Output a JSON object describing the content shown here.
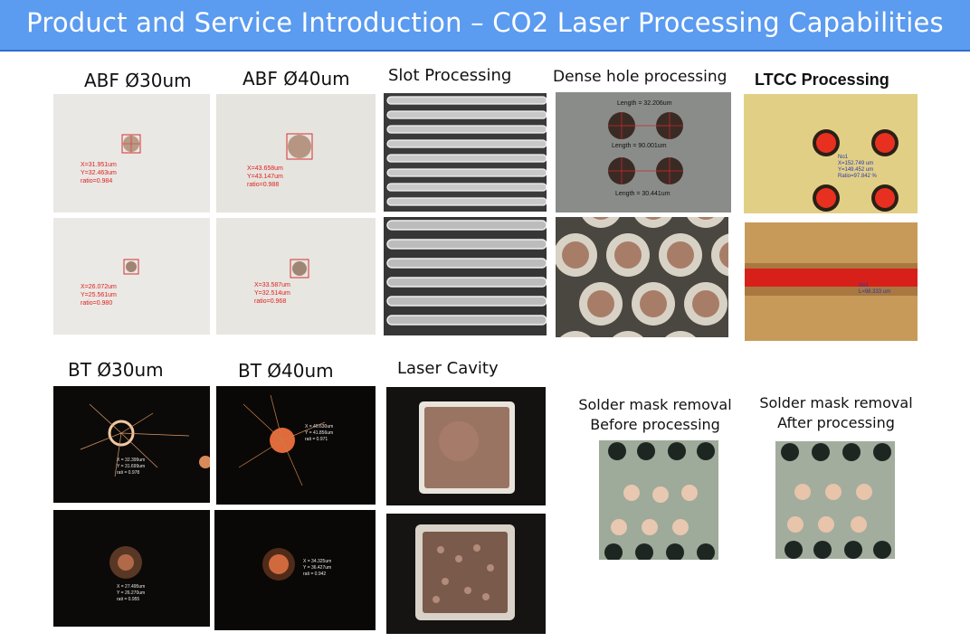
{
  "page": {
    "title": "Product and Service Introduction – CO2 Laser Processing Capabilities"
  },
  "labels": {
    "abf30": "ABF  Ø30um",
    "abf40": "ABF  Ø40um",
    "slot": "Slot Processing",
    "dense": "Dense hole processing",
    "ltcc": "LTCC Processing",
    "bt30": "BT  Ø30um",
    "bt40": "BT  Ø40um",
    "cavity": "Laser Cavity",
    "solder_before_1": "Solder mask removal",
    "solder_before_2": "Before processing",
    "solder_after_1": "Solder mask removal",
    "solder_after_2": "After processing"
  },
  "abf30": {
    "top": {
      "x": "X=31.951um",
      "y": "Y=32.463um",
      "ratio": "ratio=0.984"
    },
    "bottom": {
      "x": "X=26.072um",
      "y": "Y=25.561um",
      "ratio": "ratio=0.980"
    }
  },
  "abf40": {
    "top": {
      "x": "X=43.658um",
      "y": "Y=43.147um",
      "ratio": "ratio=0.988"
    },
    "bottom": {
      "x": "X=33.587um",
      "y": "Y=32.514um",
      "ratio": "ratio=0.968"
    }
  },
  "dense": {
    "len1": "Length = 32.206um",
    "len2": "Length = 90.001um",
    "len3": "Length = 30.441um"
  },
  "ltcc": {
    "no1": "No1",
    "x": "X=152.749 um",
    "y": "Y=149.452 um",
    "ratio": "Ratio=97.842 %",
    "no1b": "No1",
    "length": "L=98.333 um"
  },
  "bt30": {
    "top": {
      "x": "X = 32.399um",
      "y": "Y = 31.699um",
      "ratio": "rati = 0.978"
    },
    "bottom": {
      "x": "X = 27.495um",
      "y": "Y = 26.270um",
      "ratio": "rati = 0.955"
    }
  },
  "bt40": {
    "top": {
      "x": "X = 40.630um",
      "y": "Y = 41.856um",
      "ratio": "rati = 0.971"
    },
    "bottom": {
      "x": "X = 34.325um",
      "y": "Y = 36.427um",
      "ratio": "rati = 0.942"
    }
  }
}
